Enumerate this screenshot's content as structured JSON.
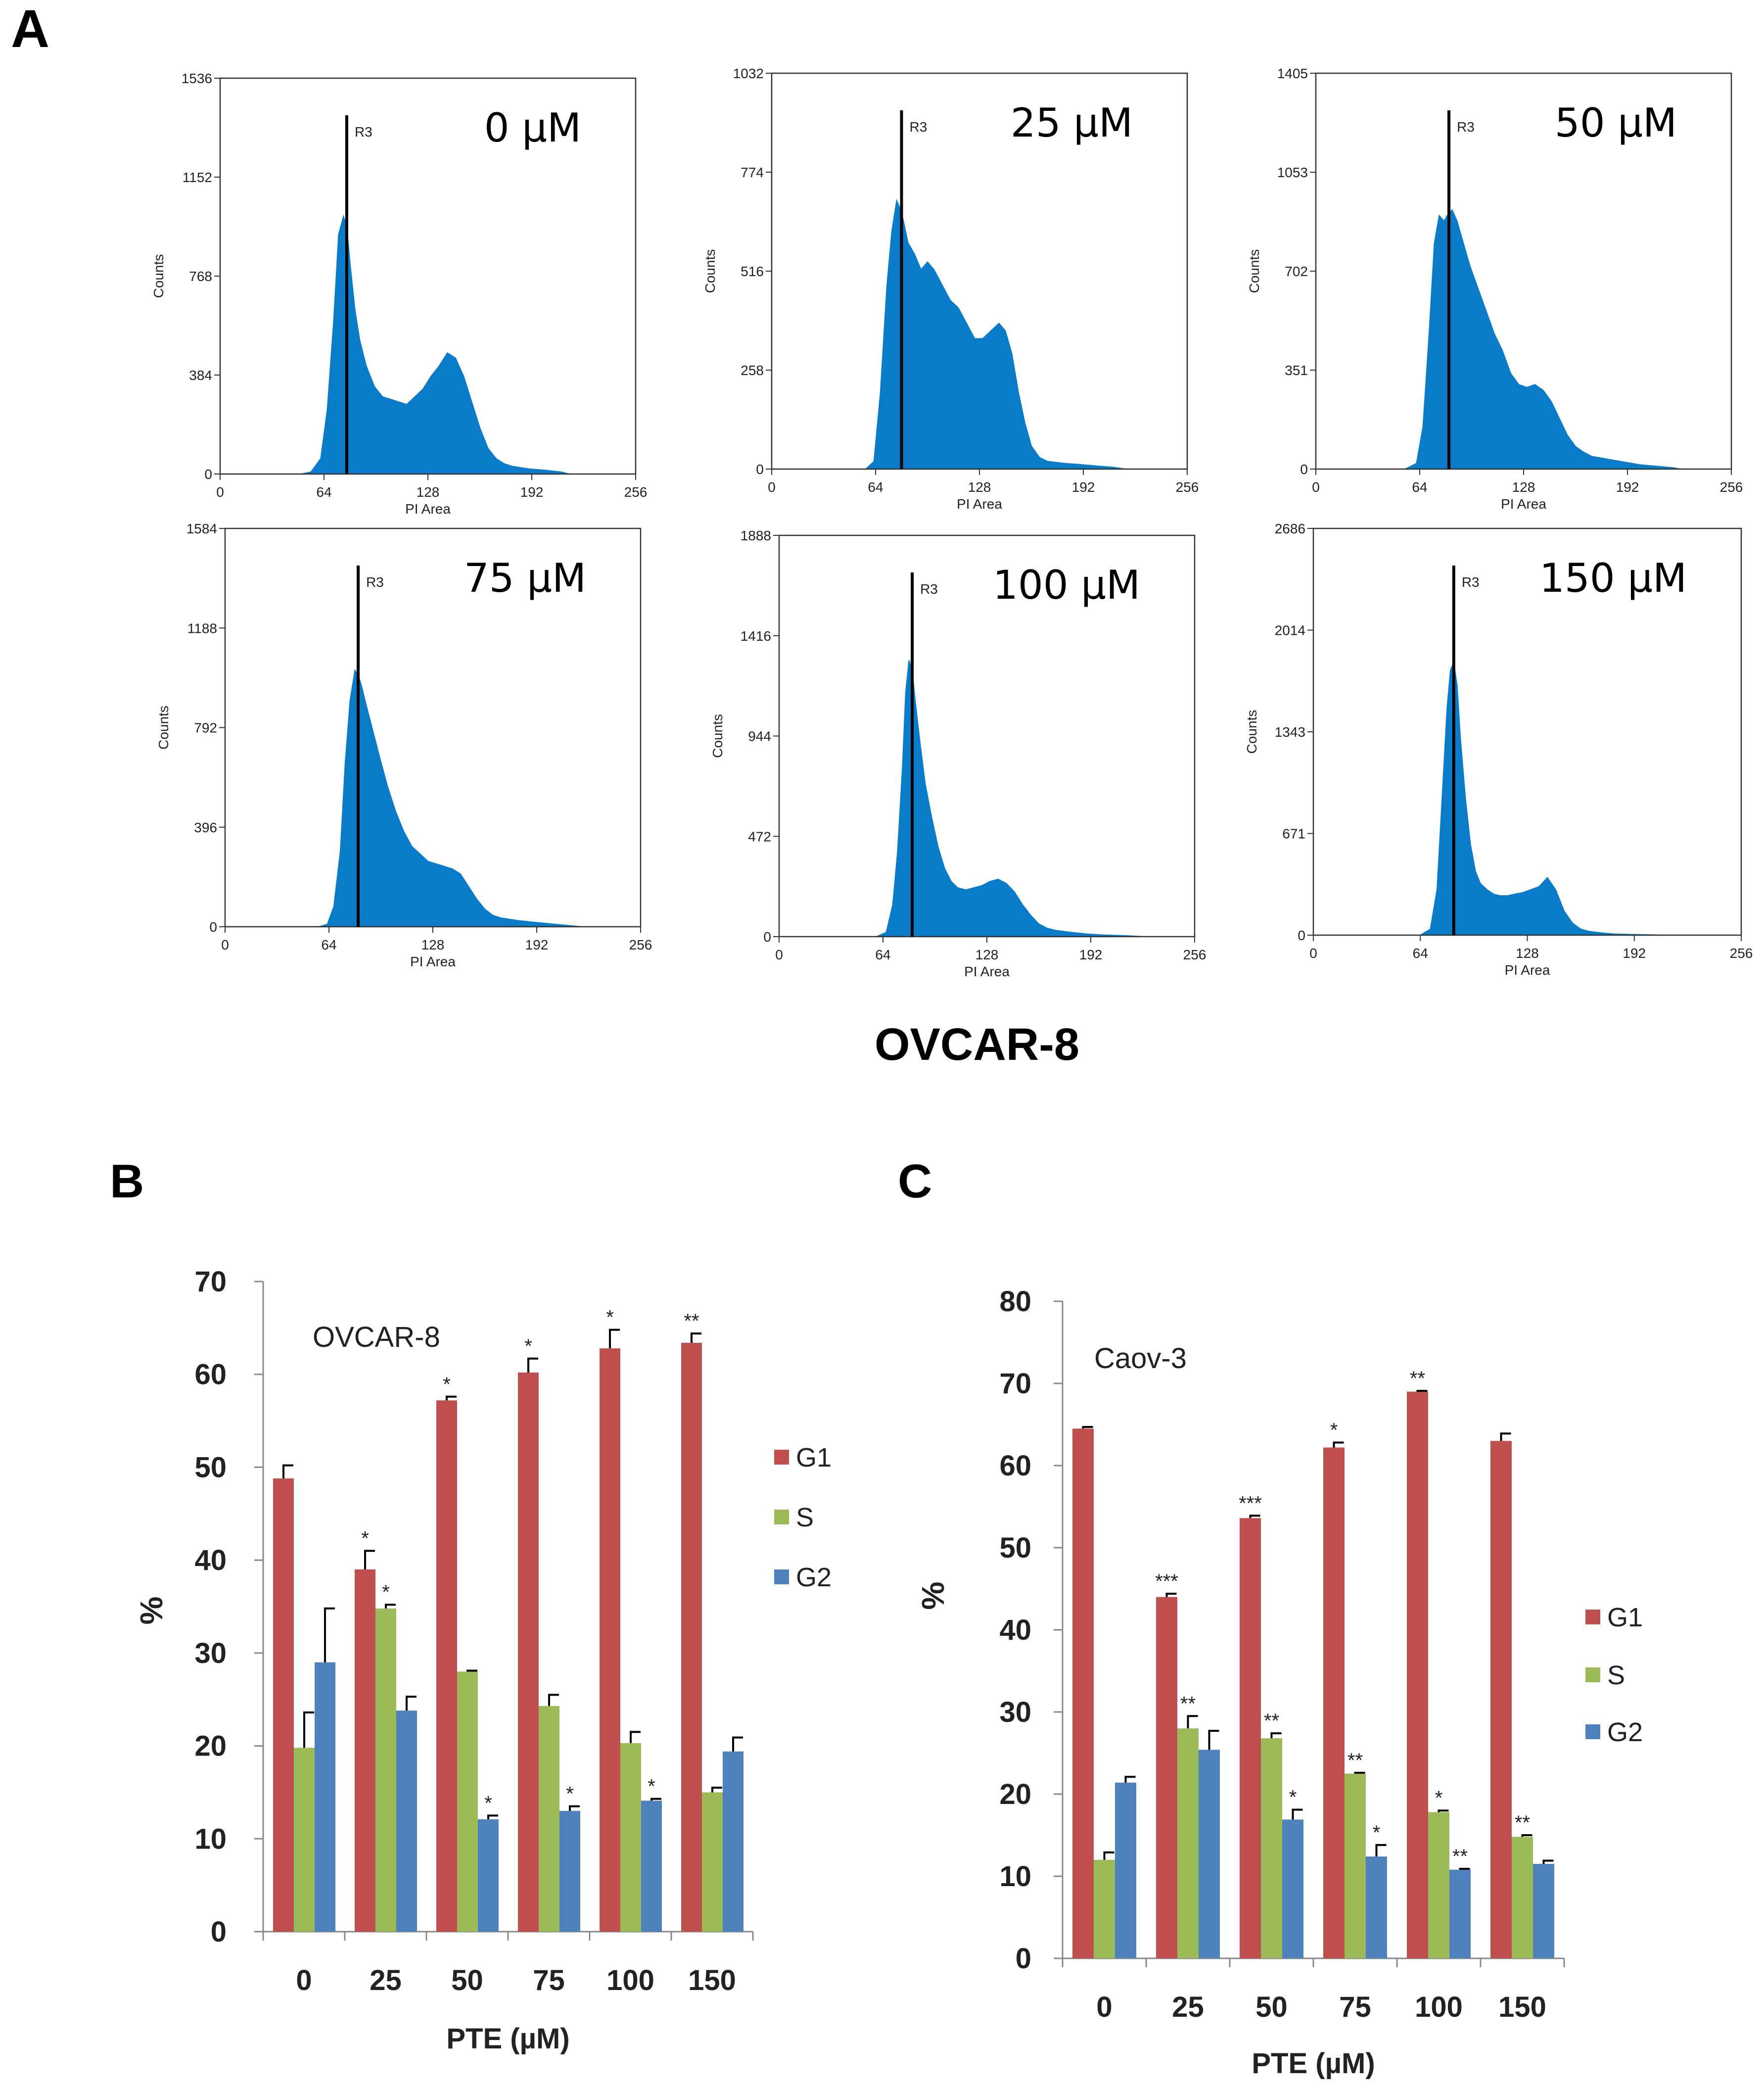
{
  "panels": {
    "a": "A",
    "b": "B",
    "c": "C"
  },
  "histogram_caption": "OVCAR-8",
  "colors": {
    "histogram": "#0a7bc9",
    "g1": "#c0504d",
    "s": "#9bbb59",
    "g2": "#4f81bd"
  },
  "chart_data": [
    {
      "type": "area",
      "title": "0 µM",
      "xlabel": "PI Area",
      "ylabel": "Counts",
      "gate": "R3",
      "gate_x": 78,
      "xlim": [
        0,
        256
      ],
      "ylim": [
        0,
        1536
      ],
      "x_ticks": [
        "0",
        "64",
        "128",
        "192",
        "256"
      ],
      "y_ticks": [
        "0",
        "384",
        "768",
        "1152",
        "1536"
      ],
      "x": [
        50,
        56,
        62,
        66,
        70,
        73,
        76,
        78,
        80,
        83,
        86,
        90,
        95,
        100,
        105,
        110,
        115,
        120,
        125,
        130,
        135,
        140,
        145,
        150,
        155,
        160,
        165,
        170,
        175,
        180,
        185,
        190,
        200,
        210,
        215
      ],
      "y": [
        0,
        8,
        60,
        250,
        600,
        930,
        1000,
        960,
        820,
        640,
        520,
        420,
        340,
        300,
        290,
        280,
        270,
        300,
        330,
        380,
        420,
        470,
        450,
        380,
        280,
        180,
        100,
        60,
        40,
        30,
        25,
        20,
        15,
        8,
        0
      ]
    },
    {
      "type": "area",
      "title": "25 µM",
      "xlabel": "PI Area",
      "ylabel": "Counts",
      "gate": "R3",
      "gate_x": 80,
      "xlim": [
        0,
        256
      ],
      "ylim": [
        0,
        1032
      ],
      "x_ticks": [
        "0",
        "64",
        "128",
        "192",
        "256"
      ],
      "y_ticks": [
        "0",
        "258",
        "516",
        "774",
        "1032"
      ],
      "x": [
        58,
        63,
        67,
        71,
        74,
        77,
        79,
        81,
        84,
        88,
        92,
        96,
        100,
        105,
        110,
        115,
        120,
        125,
        130,
        135,
        140,
        144,
        148,
        152,
        156,
        160,
        165,
        170,
        180,
        190,
        200,
        210,
        218
      ],
      "y": [
        0,
        20,
        200,
        480,
        620,
        700,
        680,
        650,
        590,
        560,
        520,
        540,
        520,
        480,
        440,
        420,
        380,
        340,
        340,
        360,
        380,
        360,
        300,
        200,
        120,
        60,
        30,
        20,
        15,
        12,
        8,
        5,
        0
      ]
    },
    {
      "type": "area",
      "title": "50 µM",
      "xlabel": "PI Area",
      "ylabel": "Counts",
      "gate": "R3",
      "gate_x": 82,
      "xlim": [
        0,
        256
      ],
      "ylim": [
        0,
        1405
      ],
      "x_ticks": [
        "0",
        "64",
        "128",
        "192",
        "256"
      ],
      "y_ticks": [
        "0",
        "351",
        "702",
        "1053",
        "1405"
      ],
      "x": [
        55,
        62,
        66,
        70,
        73,
        76,
        79,
        81,
        84,
        87,
        91,
        95,
        100,
        105,
        110,
        115,
        120,
        125,
        130,
        135,
        140,
        145,
        150,
        155,
        160,
        165,
        170,
        180,
        190,
        200,
        210,
        220,
        225
      ],
      "y": [
        0,
        20,
        150,
        500,
        800,
        900,
        880,
        900,
        920,
        880,
        800,
        720,
        640,
        560,
        480,
        420,
        340,
        300,
        290,
        300,
        280,
        240,
        180,
        120,
        80,
        60,
        45,
        35,
        25,
        15,
        10,
        5,
        0
      ]
    },
    {
      "type": "area",
      "title": "75 µM",
      "xlabel": "PI Area",
      "ylabel": "Counts",
      "gate": "R3",
      "gate_x": 82,
      "xlim": [
        0,
        256
      ],
      "ylim": [
        0,
        1584
      ],
      "x_ticks": [
        "0",
        "64",
        "128",
        "192",
        "256"
      ],
      "y_ticks": [
        "0",
        "396",
        "792",
        "1188",
        "1584"
      ],
      "x": [
        58,
        63,
        67,
        71,
        74,
        77,
        80,
        82,
        84,
        87,
        91,
        95,
        100,
        105,
        110,
        115,
        120,
        125,
        130,
        135,
        140,
        145,
        150,
        155,
        160,
        165,
        170,
        180,
        190,
        200,
        210,
        220
      ],
      "y": [
        0,
        10,
        80,
        300,
        650,
        900,
        1020,
        1000,
        960,
        880,
        780,
        680,
        560,
        460,
        380,
        320,
        290,
        260,
        250,
        240,
        230,
        210,
        160,
        110,
        70,
        45,
        35,
        25,
        18,
        12,
        6,
        0
      ]
    },
    {
      "type": "area",
      "title": "100 µM",
      "xlabel": "PI Area",
      "ylabel": "Counts",
      "gate": "R3",
      "gate_x": 82,
      "xlim": [
        0,
        256
      ],
      "ylim": [
        0,
        1888
      ],
      "x_ticks": [
        "0",
        "64",
        "128",
        "192",
        "256"
      ],
      "y_ticks": [
        "0",
        "472",
        "944",
        "1416",
        "1888"
      ],
      "x": [
        60,
        66,
        70,
        73,
        76,
        78,
        80,
        82,
        84,
        87,
        90,
        94,
        98,
        102,
        106,
        110,
        115,
        120,
        125,
        130,
        135,
        140,
        145,
        150,
        155,
        160,
        165,
        170,
        180,
        190,
        200,
        215,
        225
      ],
      "y": [
        0,
        20,
        150,
        400,
        800,
        1150,
        1300,
        1250,
        1100,
        900,
        720,
        560,
        420,
        320,
        260,
        230,
        220,
        230,
        240,
        260,
        270,
        250,
        210,
        150,
        100,
        60,
        40,
        30,
        20,
        12,
        8,
        4,
        0
      ]
    },
    {
      "type": "area",
      "title": "150 µM",
      "xlabel": "PI Area",
      "ylabel": "Counts",
      "gate": "R3",
      "gate_x": 84,
      "xlim": [
        0,
        256
      ],
      "ylim": [
        0,
        2686
      ],
      "x_ticks": [
        "0",
        "64",
        "128",
        "192",
        "256"
      ],
      "y_ticks": [
        "0",
        "671",
        "1343",
        "2014",
        "2686"
      ],
      "x": [
        64,
        70,
        74,
        77,
        80,
        82,
        84,
        86,
        88,
        91,
        94,
        97,
        100,
        104,
        108,
        112,
        116,
        120,
        125,
        130,
        135,
        140,
        145,
        150,
        155,
        160,
        165,
        170,
        175,
        180,
        190,
        200,
        210
      ],
      "y": [
        0,
        40,
        300,
        900,
        1500,
        1750,
        1800,
        1650,
        1300,
        900,
        600,
        420,
        340,
        300,
        270,
        260,
        260,
        270,
        280,
        300,
        320,
        380,
        300,
        160,
        80,
        40,
        25,
        18,
        12,
        8,
        5,
        3,
        0
      ]
    },
    {
      "type": "bar",
      "panel": "B",
      "title": "OVCAR-8",
      "xlabel": "PTE (µM)",
      "ylabel": "%",
      "ylim": [
        0,
        70
      ],
      "y_ticks": [
        "0",
        "10",
        "20",
        "30",
        "40",
        "50",
        "60",
        "70"
      ],
      "categories": [
        "0",
        "25",
        "50",
        "75",
        "100",
        "150"
      ],
      "series": [
        {
          "name": "G1",
          "values": [
            48.8,
            39,
            57.2,
            60.2,
            62.8,
            63.4
          ],
          "errors": [
            1.4,
            2,
            0.4,
            1.5,
            2,
            1
          ],
          "sig": [
            "",
            "*",
            "*",
            "*",
            "*",
            "**"
          ]
        },
        {
          "name": "S",
          "values": [
            19.8,
            34.8,
            28,
            24.3,
            20.3,
            15
          ],
          "errors": [
            3.8,
            0.4,
            0.1,
            1.2,
            1.2,
            0.5
          ],
          "sig": [
            "",
            "*",
            "",
            "",
            "",
            ""
          ]
        },
        {
          "name": "G2",
          "values": [
            29,
            23.8,
            12.1,
            13,
            14.1,
            19.4
          ],
          "errors": [
            5.8,
            1.5,
            0.4,
            0.5,
            0.2,
            1.5
          ],
          "sig": [
            "",
            "",
            "*",
            "*",
            "*",
            ""
          ]
        }
      ]
    },
    {
      "type": "bar",
      "panel": "C",
      "title": "Caov-3",
      "xlabel": "PTE (µM)",
      "ylabel": "%",
      "ylim": [
        0,
        80
      ],
      "y_ticks": [
        "0",
        "10",
        "20",
        "30",
        "40",
        "50",
        "60",
        "70",
        "80"
      ],
      "categories": [
        "0",
        "25",
        "50",
        "75",
        "100",
        "150"
      ],
      "series": [
        {
          "name": "G1",
          "values": [
            64.5,
            44,
            53.6,
            62.2,
            69,
            63
          ],
          "errors": [
            0.2,
            0.4,
            0.3,
            0.6,
            0.1,
            0.9
          ],
          "sig": [
            "",
            "***",
            "***",
            "*",
            "**",
            ""
          ]
        },
        {
          "name": "S",
          "values": [
            12,
            28,
            26.8,
            22.5,
            17.8,
            14.8
          ],
          "errors": [
            0.9,
            1.5,
            0.6,
            0.1,
            0.2,
            0.2
          ],
          "sig": [
            "",
            "**",
            "**",
            "**",
            "*",
            "**"
          ]
        },
        {
          "name": "G2",
          "values": [
            21.4,
            25.4,
            16.9,
            12.4,
            10.8,
            11.5
          ],
          "errors": [
            0.7,
            2.3,
            1.2,
            1.4,
            0.1,
            0.4
          ],
          "sig": [
            "",
            "",
            "*",
            "*",
            "**",
            ""
          ]
        }
      ]
    }
  ]
}
